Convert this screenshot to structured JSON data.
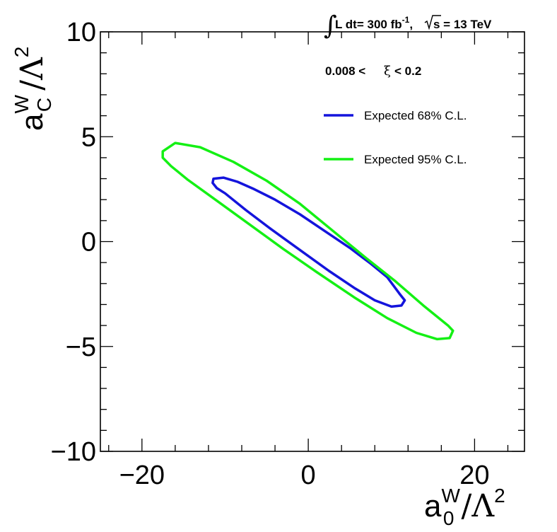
{
  "chart_data": {
    "type": "line",
    "annotation": {
      "integral_text": "L dt= 300 fb",
      "integral_exp": "-1",
      "sqrt_text": "s = 13 TeV",
      "xi_range_left": "0.008 <",
      "xi_symbol": "ξ",
      "xi_range_right": "< 0.2"
    },
    "xlabel": {
      "base": "a",
      "sup": "W",
      "sub": "0",
      "rest": "/Λ",
      "power": "2"
    },
    "ylabel": {
      "base": "a",
      "sup": "W",
      "sub": "C",
      "rest": "/Λ",
      "power": "2"
    },
    "xlim": [
      -25,
      26
    ],
    "ylim": [
      -10,
      10
    ],
    "x_ticks": [
      {
        "value": -20,
        "label": "−20"
      },
      {
        "value": 0,
        "label": "0"
      },
      {
        "value": 20,
        "label": "20"
      }
    ],
    "y_ticks": [
      {
        "value": -10,
        "label": "−10"
      },
      {
        "value": -5,
        "label": "−5"
      },
      {
        "value": 0,
        "label": "0"
      },
      {
        "value": 5,
        "label": "5"
      },
      {
        "value": 10,
        "label": "10"
      }
    ],
    "grid": false,
    "legend_position": "top-right",
    "series": [
      {
        "name": "Expected 68% C.L.",
        "color": "#1414dc",
        "points": [
          [
            -11.5,
            2.8
          ],
          [
            -11.4,
            3.0
          ],
          [
            -10.2,
            3.05
          ],
          [
            -8.5,
            2.85
          ],
          [
            -6.5,
            2.5
          ],
          [
            -4.0,
            2.0
          ],
          [
            -1.0,
            1.3
          ],
          [
            2.0,
            0.5
          ],
          [
            5.0,
            -0.3
          ],
          [
            7.5,
            -1.05
          ],
          [
            9.5,
            -1.7
          ],
          [
            11.0,
            -2.5
          ],
          [
            11.6,
            -2.8
          ],
          [
            11.2,
            -3.05
          ],
          [
            10.0,
            -3.1
          ],
          [
            8.0,
            -2.8
          ],
          [
            5.5,
            -2.2
          ],
          [
            2.5,
            -1.4
          ],
          [
            -1.0,
            -0.4
          ],
          [
            -4.5,
            0.6
          ],
          [
            -7.5,
            1.5
          ],
          [
            -10.0,
            2.3
          ],
          [
            -11.0,
            2.55
          ],
          [
            -11.5,
            2.8
          ]
        ]
      },
      {
        "name": "Expected 95% C.L.",
        "color": "#14f014",
        "points": [
          [
            -17.5,
            4.3
          ],
          [
            -16.0,
            4.7
          ],
          [
            -13.0,
            4.5
          ],
          [
            -9.0,
            3.8
          ],
          [
            -5.0,
            2.9
          ],
          [
            -1.0,
            1.8
          ],
          [
            3.0,
            0.5
          ],
          [
            7.0,
            -0.8
          ],
          [
            10.5,
            -1.9
          ],
          [
            14.0,
            -3.1
          ],
          [
            16.8,
            -4.0
          ],
          [
            17.4,
            -4.25
          ],
          [
            17.0,
            -4.6
          ],
          [
            15.5,
            -4.65
          ],
          [
            13.0,
            -4.35
          ],
          [
            9.5,
            -3.65
          ],
          [
            5.5,
            -2.65
          ],
          [
            1.0,
            -1.45
          ],
          [
            -3.0,
            -0.35
          ],
          [
            -7.0,
            0.8
          ],
          [
            -11.0,
            1.95
          ],
          [
            -14.5,
            2.95
          ],
          [
            -16.5,
            3.6
          ],
          [
            -17.5,
            4.0
          ],
          [
            -17.5,
            4.3
          ]
        ]
      }
    ]
  }
}
